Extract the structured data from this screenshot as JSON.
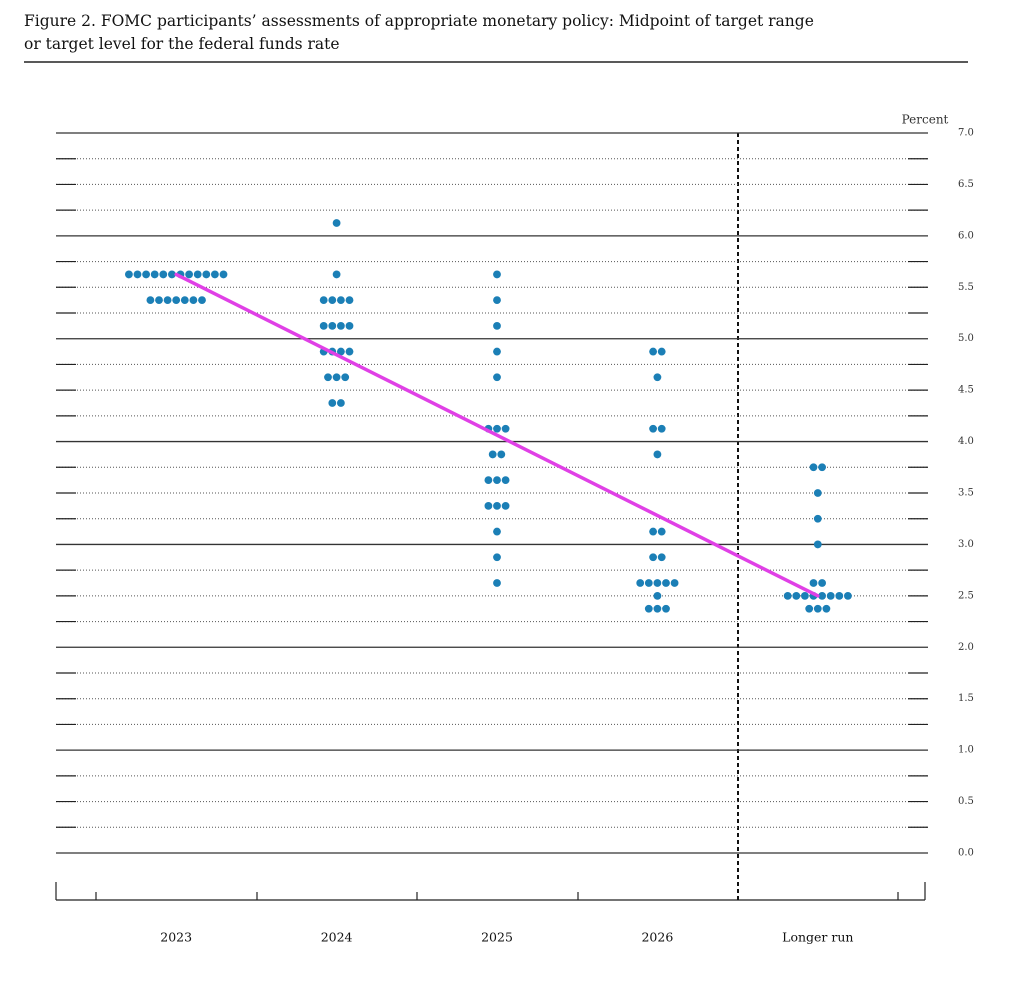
{
  "chart_data": {
    "type": "dot",
    "title_lines": [
      "Figure 2.  FOMC participants’ assessments of appropriate monetary policy:  Midpoint of target range",
      "or target level for the federal funds rate"
    ],
    "ylabel": "Percent",
    "categories": [
      "2023",
      "2024",
      "2025",
      "2026",
      "Longer run"
    ],
    "color": "#1b7fb6",
    "dots": [
      [
        {
          "rate": 5.625,
          "count": 12
        },
        {
          "rate": 5.375,
          "count": 7
        }
      ],
      [
        {
          "rate": 6.125,
          "count": 1
        },
        {
          "rate": 5.625,
          "count": 1
        },
        {
          "rate": 5.375,
          "count": 4
        },
        {
          "rate": 5.125,
          "count": 4
        },
        {
          "rate": 4.875,
          "count": 4
        },
        {
          "rate": 4.625,
          "count": 3
        },
        {
          "rate": 4.375,
          "count": 2
        }
      ],
      [
        {
          "rate": 5.625,
          "count": 1
        },
        {
          "rate": 5.375,
          "count": 1
        },
        {
          "rate": 5.125,
          "count": 1
        },
        {
          "rate": 4.875,
          "count": 1
        },
        {
          "rate": 4.625,
          "count": 1
        },
        {
          "rate": 4.125,
          "count": 3
        },
        {
          "rate": 3.875,
          "count": 2
        },
        {
          "rate": 3.625,
          "count": 3
        },
        {
          "rate": 3.375,
          "count": 3
        },
        {
          "rate": 3.125,
          "count": 1
        },
        {
          "rate": 2.875,
          "count": 1
        },
        {
          "rate": 2.625,
          "count": 1
        }
      ],
      [
        {
          "rate": 4.875,
          "count": 2
        },
        {
          "rate": 4.625,
          "count": 1
        },
        {
          "rate": 4.125,
          "count": 2
        },
        {
          "rate": 3.875,
          "count": 1
        },
        {
          "rate": 3.125,
          "count": 2
        },
        {
          "rate": 2.875,
          "count": 2
        },
        {
          "rate": 2.625,
          "count": 5
        },
        {
          "rate": 2.5,
          "count": 1
        },
        {
          "rate": 2.375,
          "count": 3
        }
      ],
      [
        {
          "rate": 3.75,
          "count": 2
        },
        {
          "rate": 3.5,
          "count": 1
        },
        {
          "rate": 3.25,
          "count": 1
        },
        {
          "rate": 3.0,
          "count": 1
        },
        {
          "rate": 2.625,
          "count": 2
        },
        {
          "rate": 2.5,
          "count": 8
        },
        {
          "rate": 2.375,
          "count": 3
        }
      ]
    ],
    "trend_line": {
      "color": "#e040e6",
      "categories": [
        "2023",
        "Longer run"
      ],
      "values": [
        5.625,
        2.5
      ]
    },
    "ylim": [
      0,
      7
    ],
    "yticks": [
      {
        "value": 0,
        "label": "0.0"
      },
      0.5,
      {
        "value": 1,
        "label": "1.0"
      },
      1.5,
      {
        "value": 2,
        "label": "2.0"
      },
      2.5,
      {
        "value": 3,
        "label": "3.0"
      },
      3.5,
      {
        "value": 4,
        "label": "4.0"
      },
      4.5,
      {
        "value": 5,
        "label": "5.0"
      },
      5.5,
      {
        "value": 6,
        "label": "6.0"
      },
      6.5,
      {
        "value": 7,
        "label": "7.0"
      }
    ],
    "minor_yticks": [
      0.25,
      0.75,
      1.25,
      1.75,
      2.25,
      2.75,
      3.25,
      3.75,
      4.25,
      4.75,
      5.25,
      5.75,
      6.25,
      6.75
    ]
  }
}
